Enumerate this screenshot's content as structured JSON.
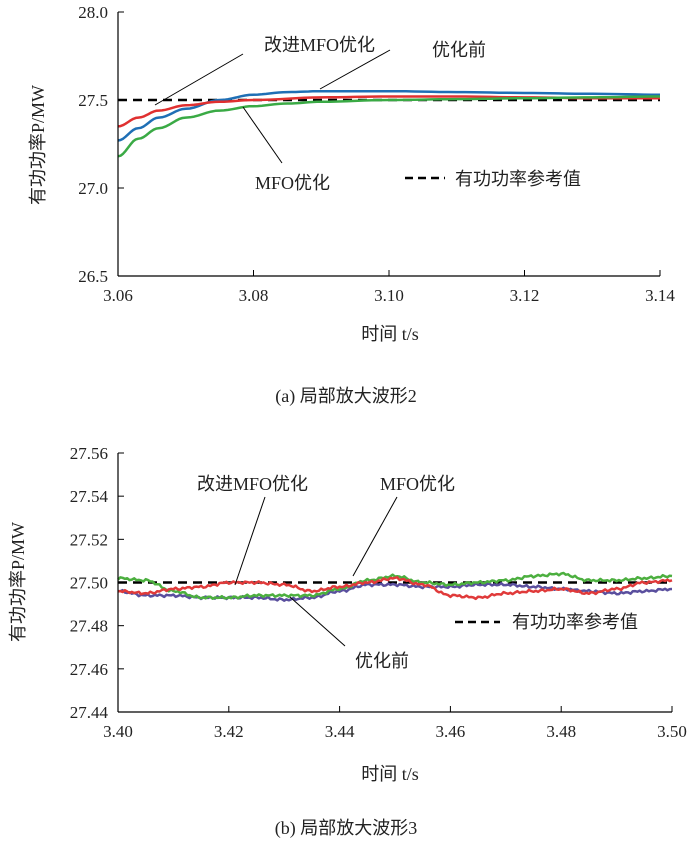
{
  "chart_data": [
    {
      "type": "line",
      "caption": "(a) 局部放大波形2",
      "xlabel": "时间 t/s",
      "ylabel": "有功功率P/MW",
      "xlim": [
        3.06,
        3.14
      ],
      "ylim": [
        26.5,
        28.0
      ],
      "xticks": [
        "3.06",
        "3.08",
        "3.10",
        "3.12",
        "3.14"
      ],
      "yticks": [
        "28.0",
        "27.5",
        "27.0",
        "26.5"
      ],
      "reference": {
        "name": "有功功率参考值",
        "value": 27.5,
        "color": "#000000"
      },
      "annotations": [
        "改进MFO优化",
        "优化前",
        "MFO优化"
      ],
      "series": [
        {
          "name": "优化前",
          "color": "#1f6fb5",
          "x": [
            3.06,
            3.063,
            3.066,
            3.07,
            3.075,
            3.08,
            3.085,
            3.09,
            3.1,
            3.11,
            3.12,
            3.13,
            3.14
          ],
          "y": [
            27.27,
            27.34,
            27.4,
            27.45,
            27.5,
            27.53,
            27.545,
            27.55,
            27.55,
            27.545,
            27.54,
            27.535,
            27.53
          ]
        },
        {
          "name": "改进MFO优化",
          "color": "#e03030",
          "x": [
            3.06,
            3.063,
            3.066,
            3.07,
            3.075,
            3.08,
            3.09,
            3.1,
            3.11,
            3.12,
            3.13,
            3.14
          ],
          "y": [
            27.35,
            27.4,
            27.44,
            27.47,
            27.49,
            27.5,
            27.515,
            27.52,
            27.52,
            27.515,
            27.51,
            27.51
          ]
        },
        {
          "name": "MFO优化",
          "color": "#3aaa45",
          "x": [
            3.06,
            3.063,
            3.066,
            3.07,
            3.075,
            3.08,
            3.085,
            3.09,
            3.1,
            3.11,
            3.12,
            3.13,
            3.14
          ],
          "y": [
            27.18,
            27.28,
            27.34,
            27.4,
            27.44,
            27.465,
            27.48,
            27.49,
            27.5,
            27.505,
            27.51,
            27.515,
            27.52
          ]
        }
      ]
    },
    {
      "type": "line",
      "caption": "(b) 局部放大波形3",
      "xlabel": "时间 t/s",
      "ylabel": "有功功率P/MW",
      "xlim": [
        3.4,
        3.5
      ],
      "ylim": [
        27.44,
        27.56
      ],
      "xticks": [
        "3.40",
        "3.42",
        "3.44",
        "3.46",
        "3.48",
        "3.50"
      ],
      "yticks": [
        "27.56",
        "27.54",
        "27.52",
        "27.50",
        "27.48",
        "27.46",
        "27.44"
      ],
      "reference": {
        "name": "有功功率参考值",
        "value": 27.5,
        "color": "#000000"
      },
      "annotations": [
        "改进MFO优化",
        "MFO优化",
        "优化前"
      ],
      "series": [
        {
          "name": "优化前",
          "color": "#5a4f9e",
          "x": [
            3.4,
            3.405,
            3.41,
            3.415,
            3.42,
            3.425,
            3.43,
            3.435,
            3.44,
            3.445,
            3.45,
            3.455,
            3.46,
            3.465,
            3.47,
            3.475,
            3.48,
            3.485,
            3.49,
            3.495,
            3.5
          ],
          "y": [
            27.496,
            27.494,
            27.494,
            27.493,
            27.493,
            27.493,
            27.492,
            27.493,
            27.496,
            27.499,
            27.499,
            27.498,
            27.498,
            27.499,
            27.499,
            27.498,
            27.497,
            27.496,
            27.495,
            27.496,
            27.497
          ]
        },
        {
          "name": "MFO优化",
          "color": "#4caf3f",
          "x": [
            3.4,
            3.405,
            3.41,
            3.415,
            3.42,
            3.425,
            3.43,
            3.435,
            3.44,
            3.445,
            3.45,
            3.455,
            3.46,
            3.465,
            3.47,
            3.475,
            3.48,
            3.485,
            3.49,
            3.495,
            3.5
          ],
          "y": [
            27.502,
            27.501,
            27.496,
            27.493,
            27.493,
            27.494,
            27.494,
            27.494,
            27.497,
            27.501,
            27.503,
            27.5,
            27.499,
            27.5,
            27.501,
            27.503,
            27.504,
            27.501,
            27.501,
            27.502,
            27.503
          ]
        },
        {
          "name": "改进MFO优化",
          "color": "#e03a3a",
          "x": [
            3.4,
            3.405,
            3.41,
            3.415,
            3.42,
            3.425,
            3.43,
            3.435,
            3.44,
            3.445,
            3.45,
            3.455,
            3.46,
            3.465,
            3.47,
            3.475,
            3.48,
            3.485,
            3.49,
            3.495,
            3.5
          ],
          "y": [
            27.496,
            27.495,
            27.497,
            27.498,
            27.5,
            27.5,
            27.499,
            27.496,
            27.498,
            27.5,
            27.502,
            27.499,
            27.494,
            27.493,
            27.495,
            27.496,
            27.497,
            27.495,
            27.497,
            27.5,
            27.501
          ]
        }
      ]
    }
  ]
}
